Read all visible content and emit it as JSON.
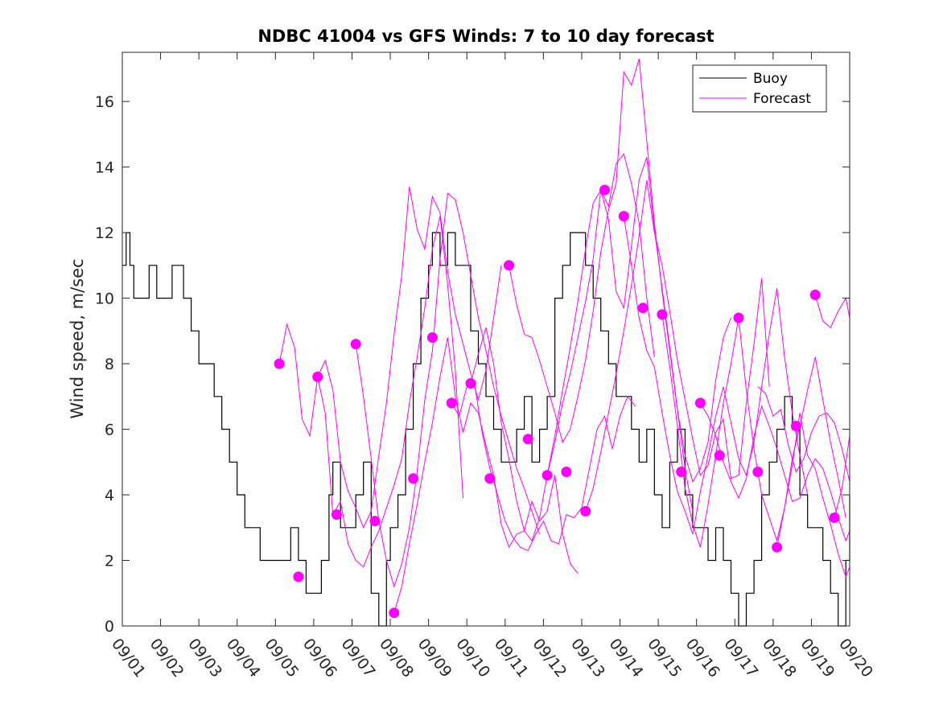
{
  "chart_data": {
    "type": "line",
    "title": "NDBC 41004 vs GFS Winds: 7 to 10 day forecast",
    "xlabel": "",
    "ylabel": "Wind speed, m/sec",
    "xlim": [
      0,
      19
    ],
    "ylim": [
      0,
      17.5
    ],
    "x_ticks": [
      0,
      1,
      2,
      3,
      4,
      5,
      6,
      7,
      8,
      9,
      10,
      11,
      12,
      13,
      14,
      15,
      16,
      17,
      18,
      19
    ],
    "x_tick_labels": [
      "09/01",
      "09/02",
      "09/03",
      "09/04",
      "09/05",
      "09/06",
      "09/07",
      "09/08",
      "09/09",
      "09/10",
      "09/11",
      "09/12",
      "09/13",
      "09/14",
      "09/15",
      "09/16",
      "09/17",
      "09/18",
      "09/19",
      "09/20"
    ],
    "y_ticks": [
      0,
      2,
      4,
      6,
      8,
      10,
      12,
      14,
      16
    ],
    "y_tick_labels": [
      "0",
      "2",
      "4",
      "6",
      "8",
      "10",
      "12",
      "14",
      "16"
    ],
    "legend": [
      {
        "label": "Buoy",
        "color": "#000000"
      },
      {
        "label": "Forecast",
        "color": "#ff00ff"
      }
    ],
    "legend_position": "top-right",
    "colors": {
      "buoy": "#000000",
      "forecast": "#ff00ff",
      "axis": "#262626"
    },
    "buoy_x": [
      0,
      0.1,
      0.2,
      0.3,
      0.5,
      0.7,
      0.9,
      1.1,
      1.3,
      1.5,
      1.6,
      1.8,
      2.0,
      2.2,
      2.4,
      2.6,
      2.8,
      3.0,
      3.2,
      3.4,
      3.6,
      3.8,
      4.0,
      4.2,
      4.4,
      4.6,
      4.8,
      5.0,
      5.2,
      5.4,
      5.5,
      5.7,
      5.9,
      6.1,
      6.3,
      6.5,
      6.7,
      6.9,
      7.0,
      7.2,
      7.4,
      7.6,
      7.8,
      8.0,
      8.1,
      8.3,
      8.5,
      8.7,
      8.9,
      9.1,
      9.3,
      9.5,
      9.7,
      9.9,
      10.1,
      10.3,
      10.5,
      10.7,
      10.9,
      11.1,
      11.3,
      11.5,
      11.7,
      11.9,
      12.1,
      12.3,
      12.5,
      12.7,
      12.9,
      13.1,
      13.3,
      13.5,
      13.7,
      13.9,
      14.1,
      14.3,
      14.5,
      14.7,
      14.9,
      15.1,
      15.3,
      15.5,
      15.7,
      15.9,
      16.1,
      16.3,
      16.5,
      16.7,
      16.9,
      17.1,
      17.3,
      17.5,
      17.7,
      17.9,
      18.1,
      18.3,
      18.5,
      18.7,
      18.9,
      19.0
    ],
    "buoy_y": [
      11,
      12,
      11,
      10,
      10,
      11,
      10,
      10,
      11,
      11,
      10,
      9,
      8,
      8,
      7,
      6,
      5,
      4,
      3,
      3,
      2,
      2,
      2,
      2,
      3,
      2,
      1,
      1,
      2,
      4,
      5,
      3,
      3,
      4,
      5,
      1,
      0,
      2,
      3,
      4,
      6,
      8,
      10,
      11,
      12,
      11,
      12,
      11,
      11,
      9,
      8,
      7,
      6,
      5,
      5,
      6,
      7,
      5,
      6,
      7,
      10,
      11,
      12,
      12,
      11,
      10,
      9,
      8,
      7,
      7,
      6,
      5,
      6,
      4,
      3,
      5,
      6,
      4,
      3,
      3,
      2,
      3,
      2,
      1,
      0,
      1,
      2,
      4,
      5,
      6,
      7,
      6,
      4,
      3,
      3,
      2,
      1,
      0,
      2,
      4
    ],
    "forecast_runs": [
      {
        "name": "run-1",
        "x": [
          4.1,
          4.3,
          4.5,
          4.7,
          4.9,
          5.1,
          5.3,
          5.5,
          5.7,
          5.9,
          6.1,
          6.3,
          6.5,
          6.7,
          6.9,
          7.1,
          7.3,
          7.5,
          7.7,
          7.9,
          8.1,
          8.3,
          8.5,
          8.7,
          8.9
        ],
        "y": [
          8.0,
          9.2,
          8.5,
          6.3,
          5.8,
          7.6,
          6.5,
          3.4,
          3.8,
          2.5,
          2.0,
          1.8,
          2.4,
          2.9,
          3.6,
          4.3,
          5.1,
          6.8,
          8.2,
          9.7,
          11.5,
          12.5,
          10.4,
          7.8,
          3.9
        ]
      },
      {
        "name": "run-2",
        "x": [
          5.1,
          5.3,
          5.5,
          5.7,
          5.9,
          6.1,
          6.3,
          6.5,
          6.7,
          6.9,
          7.1,
          7.3,
          7.5,
          7.7,
          7.9,
          8.1,
          8.3,
          8.5,
          8.7,
          8.9,
          9.1,
          9.3,
          9.5,
          9.7,
          9.9
        ],
        "y": [
          7.6,
          8.1,
          7.2,
          5.0,
          4.1,
          3.6,
          3.0,
          3.5,
          5.2,
          6.8,
          8.9,
          10.7,
          13.4,
          12.1,
          11.5,
          13.1,
          12.6,
          10.8,
          9.5,
          8.6,
          7.7,
          6.9,
          7.8,
          9.4,
          11.0
        ]
      },
      {
        "name": "run-3",
        "x": [
          6.1,
          6.3,
          6.5,
          6.7,
          6.9,
          7.1,
          7.3,
          7.5,
          7.7,
          7.9,
          8.1,
          8.3,
          8.5,
          8.7,
          8.9,
          9.1,
          9.3,
          9.5,
          9.7,
          9.9,
          10.1,
          10.3,
          10.5,
          10.7,
          10.9
        ],
        "y": [
          8.6,
          7.0,
          5.1,
          3.2,
          2.0,
          1.2,
          1.9,
          3.0,
          4.7,
          6.9,
          8.4,
          11.2,
          13.2,
          13.0,
          12.0,
          10.7,
          9.4,
          8.4,
          7.3,
          6.4,
          5.6,
          4.8,
          4.2,
          3.5,
          2.8
        ]
      },
      {
        "name": "run-4",
        "x": [
          7.1,
          7.3,
          7.5,
          7.7,
          7.9,
          8.1,
          8.3,
          8.5,
          8.7,
          8.9,
          9.1,
          9.3,
          9.5,
          9.7,
          9.9,
          10.1,
          10.3,
          10.5,
          10.7,
          10.9,
          11.1,
          11.3,
          11.5,
          11.7,
          11.9
        ],
        "y": [
          0.4,
          1.2,
          2.5,
          3.7,
          5.0,
          6.2,
          7.6,
          8.8,
          7.0,
          5.9,
          6.8,
          6.5,
          5.5,
          4.6,
          3.1,
          2.4,
          2.8,
          2.9,
          3.8,
          3.2,
          3.5,
          4.6,
          2.8,
          1.9,
          1.6
        ]
      },
      {
        "name": "run-5",
        "x": [
          8.6,
          8.8,
          9.0,
          9.2,
          9.4,
          9.6,
          9.8,
          10.0,
          10.2,
          10.4,
          10.6,
          10.8,
          11.0,
          11.2,
          11.4,
          11.6,
          11.8,
          12.0,
          12.2,
          12.4,
          12.6,
          12.8,
          13.0,
          13.2,
          13.4
        ],
        "y": [
          6.8,
          6.4,
          7.3,
          7.4,
          5.9,
          4.8,
          4.0,
          3.2,
          2.7,
          2.4,
          2.3,
          2.8,
          3.2,
          2.6,
          2.5,
          3.4,
          3.3,
          3.6,
          4.8,
          6.0,
          6.4,
          5.4,
          6.4,
          7.0,
          6.7
        ]
      },
      {
        "name": "run-6",
        "x": [
          9.1,
          9.3,
          9.5,
          9.7,
          9.9,
          10.1,
          10.3,
          10.5,
          10.7,
          10.9,
          11.1,
          11.3,
          11.5,
          11.7,
          11.9,
          12.1,
          12.3,
          12.5,
          12.7,
          12.9,
          13.1,
          13.3,
          13.5,
          13.7,
          13.9
        ],
        "y": [
          7.4,
          8.3,
          9.1,
          8.0,
          6.2,
          5.1,
          3.8,
          2.9,
          2.6,
          3.3,
          4.6,
          5.8,
          7.2,
          8.5,
          9.9,
          11.5,
          12.9,
          13.3,
          12.8,
          14.1,
          14.4,
          13.5,
          12.3,
          10.0,
          8.2
        ]
      },
      {
        "name": "run-7",
        "x": [
          10.1,
          10.3,
          10.5,
          10.7,
          10.9,
          11.1,
          11.3,
          11.5,
          11.7,
          11.9,
          12.1,
          12.3,
          12.5,
          12.7,
          12.9,
          13.1,
          13.3,
          13.5,
          13.7,
          13.9,
          14.1,
          14.3,
          14.5,
          14.7,
          14.9
        ],
        "y": [
          11.0,
          9.8,
          8.9,
          8.8,
          8.1,
          7.3,
          6.5,
          5.6,
          6.0,
          7.0,
          8.1,
          9.6,
          11.4,
          12.7,
          13.5,
          16.9,
          16.5,
          17.3,
          14.8,
          12.3,
          10.2,
          8.4,
          6.6,
          4.8,
          3.5
        ]
      },
      {
        "name": "run-8",
        "x": [
          11.1,
          11.3,
          11.5,
          11.7,
          11.9,
          12.1,
          12.3,
          12.5,
          12.7,
          12.9,
          13.1,
          13.3,
          13.5,
          13.7,
          13.9,
          14.1,
          14.3,
          14.5,
          14.7,
          14.9,
          15.1,
          15.3,
          15.5,
          15.7,
          15.9
        ],
        "y": [
          4.6,
          5.6,
          6.8,
          7.7,
          8.8,
          9.9,
          11.2,
          13.3,
          12.4,
          10.2,
          9.7,
          11.6,
          13.6,
          14.3,
          12.1,
          10.3,
          8.5,
          6.6,
          5.2,
          4.4,
          4.8,
          5.6,
          7.5,
          8.8,
          9.4
        ]
      },
      {
        "name": "run-9",
        "x": [
          12.1,
          12.3,
          12.5,
          12.7,
          12.9,
          13.1,
          13.3,
          13.5,
          13.7,
          13.9,
          14.1,
          14.3,
          14.5,
          14.7,
          14.9,
          15.1,
          15.3,
          15.5,
          15.7,
          15.9,
          16.1,
          16.3,
          16.5,
          16.7,
          16.9
        ],
        "y": [
          3.5,
          4.2,
          5.3,
          6.5,
          7.7,
          9.0,
          10.4,
          11.9,
          13.6,
          12.0,
          11.0,
          9.6,
          8.1,
          6.9,
          5.7,
          4.6,
          4.9,
          5.9,
          6.3,
          4.5,
          4.6,
          6.8,
          8.6,
          10.6,
          7.3
        ]
      },
      {
        "name": "run-10",
        "x": [
          13.1,
          13.3,
          13.5,
          13.7,
          13.9,
          14.1,
          14.3,
          14.5,
          14.7,
          14.9,
          15.1,
          15.3,
          15.5,
          15.7,
          15.9,
          16.1,
          16.3,
          16.5,
          16.7,
          16.9,
          17.1,
          17.3,
          17.5,
          17.7,
          17.9
        ],
        "y": [
          12.5,
          11.0,
          9.4,
          8.4,
          7.9,
          6.5,
          5.2,
          4.1,
          3.5,
          2.8,
          4.1,
          5.2,
          6.4,
          7.3,
          6.2,
          5.1,
          4.6,
          5.6,
          7.3,
          8.9,
          10.3,
          8.2,
          6.5,
          5.2,
          4.0
        ]
      },
      {
        "name": "run-11",
        "x": [
          14.1,
          14.3,
          14.5,
          14.7,
          14.9,
          15.1,
          15.3,
          15.5,
          15.7,
          15.9,
          16.1,
          16.3,
          16.5,
          16.7,
          16.9,
          17.1,
          17.3,
          17.5,
          17.7,
          17.9,
          18.1,
          18.3,
          18.5,
          18.7,
          18.9
        ],
        "y": [
          9.5,
          7.9,
          6.1,
          4.2,
          3.1,
          2.4,
          3.7,
          5.2,
          6.8,
          8.0,
          9.4,
          7.2,
          5.4,
          4.0,
          3.3,
          2.6,
          3.6,
          5.1,
          6.1,
          7.2,
          8.2,
          6.9,
          5.6,
          4.5,
          3.3
        ]
      },
      {
        "name": "run-12",
        "x": [
          15.1,
          15.3,
          15.5,
          15.7,
          15.9,
          16.1,
          16.3,
          16.5,
          16.7,
          16.9,
          17.1,
          17.3,
          17.5,
          17.7,
          17.9,
          18.1,
          18.3,
          18.5,
          18.7,
          18.9,
          19.0
        ],
        "y": [
          6.8,
          6.4,
          5.8,
          5.0,
          4.4,
          3.9,
          4.5,
          5.8,
          6.7,
          6.1,
          5.4,
          4.6,
          3.8,
          3.9,
          4.6,
          5.1,
          4.8,
          4.1,
          3.3,
          2.6,
          2.9
        ]
      },
      {
        "name": "run-13",
        "x": [
          16.6,
          16.8,
          17.0,
          17.2,
          17.4,
          17.6,
          17.8,
          18.0,
          18.2,
          18.4,
          18.6,
          18.8,
          19.0
        ],
        "y": [
          7.3,
          7.1,
          6.4,
          6.6,
          5.5,
          4.7,
          5.1,
          5.9,
          6.4,
          6.5,
          6.2,
          5.4,
          4.4
        ]
      },
      {
        "name": "run-14",
        "x": [
          17.1,
          17.3,
          17.5,
          17.7,
          17.9,
          18.1,
          18.3,
          18.5,
          18.7,
          18.9,
          19.0
        ],
        "y": [
          2.4,
          3.6,
          4.9,
          6.5,
          5.2,
          4.8,
          3.9,
          3.1,
          2.2,
          1.5,
          1.8
        ]
      },
      {
        "name": "run-15",
        "x": [
          18.1,
          18.3,
          18.5,
          18.7,
          18.9,
          19.0
        ],
        "y": [
          10.1,
          9.3,
          9.1,
          9.6,
          10.0,
          9.4
        ]
      },
      {
        "name": "run-16",
        "x": [
          18.6,
          18.8,
          19.0
        ],
        "y": [
          3.3,
          4.2,
          5.8
        ]
      }
    ],
    "forecast_markers_x": [
      4.1,
      5.1,
      6.1,
      7.1,
      8.1,
      9.1,
      10.1,
      11.1,
      12.1,
      13.1,
      14.1,
      15.1,
      16.1,
      17.1,
      18.1,
      18.6,
      4.6,
      5.6,
      6.6,
      7.6,
      8.6,
      9.6,
      10.6,
      11.6,
      12.6,
      13.6,
      14.6,
      15.6,
      16.6,
      17.6
    ],
    "forecast_markers_y": [
      8.0,
      7.6,
      8.6,
      0.4,
      8.8,
      7.4,
      11.0,
      4.6,
      3.5,
      12.5,
      9.5,
      6.8,
      9.4,
      2.4,
      10.1,
      3.3,
      1.5,
      3.4,
      3.2,
      4.5,
      6.8,
      4.5,
      5.7,
      4.7,
      13.3,
      9.7,
      4.7,
      5.2,
      4.7,
      6.1
    ]
  }
}
